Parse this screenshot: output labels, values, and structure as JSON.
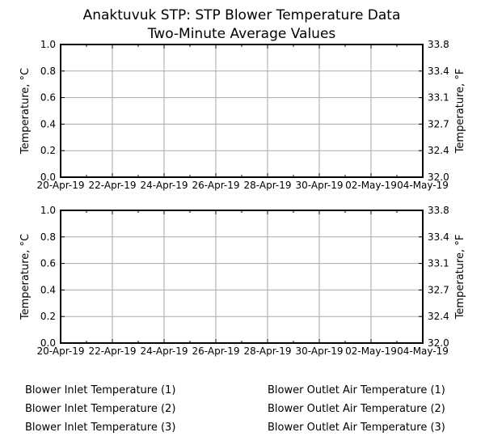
{
  "title": {
    "line1": "Anaktuvuk STP: STP Blower Temperature Data",
    "line2": "Two-Minute Average Values"
  },
  "colors": {
    "background": "#ffffff",
    "axis": "#000000",
    "grid": "#aaaaaa",
    "text": "#000000"
  },
  "chart_data": [
    {
      "type": "line",
      "subplot": "top",
      "x_tick_labels": [
        "20-Apr-19",
        "22-Apr-19",
        "24-Apr-19",
        "26-Apr-19",
        "28-Apr-19",
        "30-Apr-19",
        "02-May-19",
        "04-May-19"
      ],
      "x_minor_ticks_between_majors": 1,
      "y_left": {
        "label": "Temperature, °C",
        "ticks": [
          "0.0",
          "0.2",
          "0.4",
          "0.6",
          "0.8",
          "1.0"
        ],
        "range": [
          0.0,
          1.0
        ]
      },
      "y_right": {
        "label": "Temperature, °F",
        "ticks": [
          "32.0",
          "32.4",
          "32.7",
          "33.1",
          "33.4",
          "33.8"
        ],
        "range": [
          32.0,
          33.8
        ]
      },
      "grid": true,
      "series": []
    },
    {
      "type": "line",
      "subplot": "bottom",
      "x_tick_labels": [
        "20-Apr-19",
        "22-Apr-19",
        "24-Apr-19",
        "26-Apr-19",
        "28-Apr-19",
        "30-Apr-19",
        "02-May-19",
        "04-May-19"
      ],
      "x_minor_ticks_between_majors": 1,
      "y_left": {
        "label": "Temperature, °C",
        "ticks": [
          "0.0",
          "0.2",
          "0.4",
          "0.6",
          "0.8",
          "1.0"
        ],
        "range": [
          0.0,
          1.0
        ]
      },
      "y_right": {
        "label": "Temperature, °F",
        "ticks": [
          "32.0",
          "32.4",
          "32.7",
          "33.1",
          "33.4",
          "33.8"
        ],
        "range": [
          32.0,
          33.8
        ]
      },
      "grid": true,
      "series": []
    }
  ],
  "legend": {
    "position": "bottom",
    "left_column": [
      "Blower Inlet Temperature (1)",
      "Blower Inlet Temperature (2)",
      "Blower Inlet Temperature (3)"
    ],
    "right_column": [
      "Blower Outlet Air Temperature (1)",
      "Blower Outlet Air Temperature (2)",
      "Blower Outlet Air Temperature (3)"
    ]
  }
}
